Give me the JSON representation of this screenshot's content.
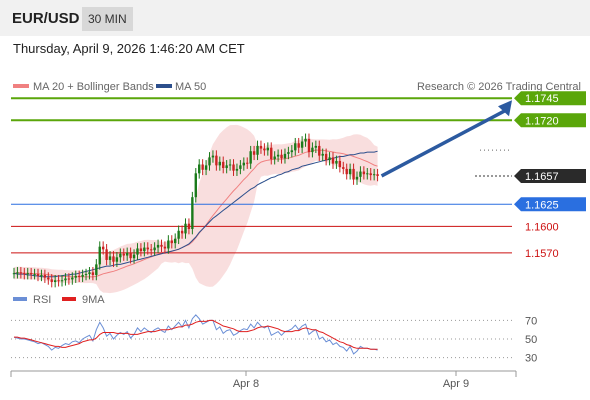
{
  "header": {
    "symbol": "EUR/USD",
    "timeframe": "30 MIN"
  },
  "datetime": "Thursday, April 9, 2026 1:46:20 AM CET",
  "legend": {
    "bollinger": {
      "label": "MA 20 + Bollinger Bands",
      "color": "#f08080"
    },
    "ma50": {
      "label": "MA 50",
      "color": "#2c4f8c"
    }
  },
  "copyright": "Research © 2026 Trading Central",
  "colors": {
    "resistance": "#5aa60a",
    "support": "#2a6fe0",
    "support_light": "#cc1111",
    "candle_up": "#1a7a1a",
    "candle_down": "#cc2222",
    "arrow": "#2c5aa0",
    "rsi": "#6b8fd6",
    "rsi_ma": "#e02020"
  },
  "chart_data": [
    {
      "type": "candlestick",
      "symbol": "EUR/USD",
      "timeframe": "30 MIN",
      "ylim": [
        1.1528,
        1.1752
      ],
      "x_tick_labels": [
        "Apr 8",
        "Apr 9"
      ],
      "current_price": 1.1657,
      "levels": [
        {
          "value": 1.1745,
          "label": "1.1745",
          "kind": "resistance"
        },
        {
          "value": 1.172,
          "label": "1.1720",
          "kind": "resistance"
        },
        {
          "value": 1.1625,
          "label": "1.1625",
          "kind": "support"
        },
        {
          "value": 1.16,
          "label": "1.1600",
          "kind": "support_light"
        },
        {
          "value": 1.157,
          "label": "1.1570",
          "kind": "support_light"
        }
      ],
      "close": [
        1.1547,
        1.1548,
        1.1547,
        1.1546,
        1.1547,
        1.1546,
        1.1546,
        1.1544,
        1.1545,
        1.1542,
        1.154,
        1.1537,
        1.1539,
        1.1538,
        1.1539,
        1.1541,
        1.154,
        1.1542,
        1.1544,
        1.1543,
        1.1545,
        1.1546,
        1.1548,
        1.1545,
        1.1557,
        1.1577,
        1.1574,
        1.1562,
        1.1566,
        1.156,
        1.1565,
        1.1569,
        1.1567,
        1.157,
        1.1564,
        1.1568,
        1.1575,
        1.1572,
        1.1576,
        1.1574,
        1.1573,
        1.1576,
        1.1579,
        1.1577,
        1.1575,
        1.1584,
        1.1581,
        1.1586,
        1.1595,
        1.1592,
        1.1603,
        1.1597,
        1.1633,
        1.166,
        1.167,
        1.1664,
        1.1669,
        1.1678,
        1.168,
        1.1669,
        1.1673,
        1.1666,
        1.1669,
        1.167,
        1.1663,
        1.1665,
        1.1669,
        1.1672,
        1.1671,
        1.1685,
        1.1681,
        1.1691,
        1.1688,
        1.1686,
        1.1689,
        1.1676,
        1.1679,
        1.1681,
        1.1677,
        1.1682,
        1.1684,
        1.1686,
        1.1694,
        1.1689,
        1.1696,
        1.1699,
        1.1684,
        1.1689,
        1.1691,
        1.168,
        1.1682,
        1.1675,
        1.1678,
        1.1671,
        1.1674,
        1.1667,
        1.1665,
        1.1659,
        1.1665,
        1.1653,
        1.1656,
        1.1662,
        1.1659,
        1.166,
        1.1658,
        1.1659,
        1.1657
      ],
      "ma50": [
        1.1547,
        1.1546,
        1.1546,
        1.1546,
        1.1545,
        1.1545,
        1.1544,
        1.1544,
        1.1543,
        1.1543,
        1.1543,
        1.1543,
        1.1543,
        1.1544,
        1.1544,
        1.1545,
        1.1545,
        1.1546,
        1.1546,
        1.1547,
        1.1548,
        1.1549,
        1.155,
        1.1551,
        1.1552,
        1.1553,
        1.1554,
        1.1555,
        1.1555,
        1.1556,
        1.1557,
        1.1557,
        1.1558,
        1.1559,
        1.156,
        1.1561,
        1.1562,
        1.1563,
        1.1564,
        1.1565,
        1.1566,
        1.1567,
        1.1568,
        1.1569,
        1.157,
        1.1571,
        1.1572,
        1.1573,
        1.1574,
        1.1576,
        1.1578,
        1.158,
        1.1584,
        1.1588,
        1.1593,
        1.1597,
        1.1601,
        1.1605,
        1.1609,
        1.1612,
        1.1615,
        1.1618,
        1.1621,
        1.1624,
        1.1627,
        1.163,
        1.1633,
        1.1636,
        1.1639,
        1.1642,
        1.1644,
        1.1647,
        1.1649,
        1.1651,
        1.1653,
        1.1655,
        1.1656,
        1.1658,
        1.1659,
        1.1661,
        1.1662,
        1.1664,
        1.1665,
        1.1666,
        1.1668,
        1.1669,
        1.167,
        1.1671,
        1.1672,
        1.1673,
        1.1674,
        1.1675,
        1.1676,
        1.1677,
        1.1678,
        1.1679,
        1.1679,
        1.168,
        1.1681,
        1.1681,
        1.1682,
        1.1683,
        1.1683,
        1.1684,
        1.1684,
        1.1684,
        1.1685
      ]
    },
    {
      "type": "line",
      "title": "RSI",
      "series": [
        {
          "name": "RSI"
        },
        {
          "name": "9MA"
        }
      ],
      "ylim": [
        22,
        78
      ],
      "y_ticks": [
        70,
        50,
        30
      ],
      "rsi": [
        52,
        51,
        50,
        50,
        49,
        48,
        47,
        45,
        46,
        44,
        42,
        38,
        41,
        40,
        43,
        45,
        44,
        47,
        48,
        46,
        50,
        52,
        54,
        48,
        60,
        68,
        62,
        53,
        56,
        50,
        54,
        57,
        55,
        58,
        51,
        55,
        62,
        58,
        62,
        59,
        57,
        60,
        62,
        59,
        57,
        64,
        60,
        64,
        68,
        63,
        70,
        62,
        72,
        76,
        72,
        66,
        68,
        70,
        70,
        60,
        63,
        56,
        59,
        60,
        54,
        56,
        59,
        61,
        60,
        66,
        62,
        68,
        64,
        62,
        64,
        54,
        56,
        58,
        54,
        58,
        59,
        61,
        65,
        60,
        64,
        66,
        55,
        58,
        60,
        50,
        52,
        47,
        49,
        44,
        46,
        42,
        41,
        37,
        42,
        34,
        37,
        42,
        40,
        40,
        39,
        39,
        38
      ],
      "rsi_ma": [
        52,
        52,
        51,
        51,
        50,
        49,
        48,
        47,
        46,
        45,
        44,
        43,
        42,
        42,
        41,
        41,
        42,
        43,
        44,
        45,
        47,
        48,
        49,
        49,
        51,
        55,
        57,
        57,
        57,
        57,
        56,
        56,
        56,
        56,
        55,
        55,
        55,
        56,
        57,
        58,
        58,
        58,
        59,
        60,
        60,
        60,
        61,
        62,
        63,
        63,
        65,
        65,
        66,
        68,
        69,
        69,
        69,
        70,
        70,
        68,
        66,
        64,
        63,
        62,
        61,
        59,
        58,
        58,
        58,
        59,
        60,
        62,
        63,
        63,
        64,
        63,
        62,
        61,
        59,
        58,
        58,
        58,
        59,
        59,
        61,
        62,
        61,
        60,
        60,
        58,
        57,
        55,
        53,
        51,
        49,
        47,
        46,
        44,
        43,
        41,
        40,
        40,
        40,
        40,
        39,
        39,
        39
      ]
    }
  ]
}
